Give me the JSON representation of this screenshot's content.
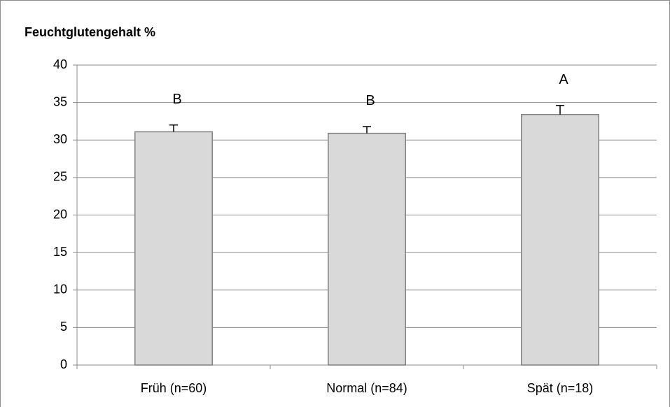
{
  "chart_data": {
    "type": "bar",
    "title": "Feuchtglutengehalt %",
    "categories": [
      "Früh (n=60)",
      "Normal (n=84)",
      "Spät (n=18)"
    ],
    "values": [
      31.1,
      30.9,
      33.4
    ],
    "errors": [
      0.9,
      0.9,
      1.2
    ],
    "annotations": [
      "B",
      "B",
      "A"
    ],
    "color": "#d9d9d9",
    "edgecolor": "#808080",
    "ylim": [
      0,
      40
    ],
    "yticks": [
      0,
      5,
      10,
      15,
      20,
      25,
      30,
      35,
      40
    ],
    "grid": true
  }
}
